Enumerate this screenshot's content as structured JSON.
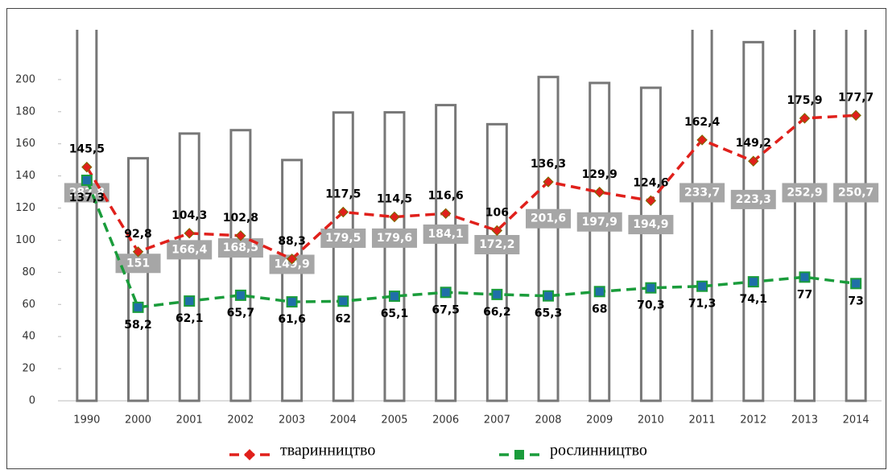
{
  "chart_data": {
    "type": "combo",
    "categories": [
      "1990",
      "2000",
      "2001",
      "2002",
      "2003",
      "2004",
      "2005",
      "2006",
      "2007",
      "2008",
      "2009",
      "2010",
      "2011",
      "2012",
      "2013",
      "2014"
    ],
    "bar_values": [
      282.8,
      151,
      166.4,
      168.5,
      149.9,
      179.5,
      179.6,
      184.1,
      172.2,
      201.6,
      197.9,
      194.9,
      233.7,
      223.3,
      252.9,
      250.7
    ],
    "bar_value_labels": [
      "282,8",
      "151",
      "166,4",
      "168,5",
      "149,9",
      "179,5",
      "179,6",
      "184,1",
      "172,2",
      "201,6",
      "197,9",
      "194,9",
      "233,7",
      "223,3",
      "252,9",
      "250,7"
    ],
    "series": [
      {
        "name": "тваринництво",
        "color": "#e0201b",
        "marker": "diamond",
        "values": [
          145.5,
          92.8,
          104.3,
          102.8,
          88.3,
          117.5,
          114.5,
          116.6,
          106,
          136.3,
          129.9,
          124.6,
          162.4,
          149.2,
          175.9,
          177.7
        ],
        "value_labels": [
          "145,5",
          "92,8",
          "104,3",
          "102,8",
          "88,3",
          "117,5",
          "114,5",
          "116,6",
          "106",
          "136,3",
          "129,9",
          "124,6",
          "162,4",
          "149,2",
          "175,9",
          "177,7"
        ]
      },
      {
        "name": "рослинництво",
        "color": "#1a9c3b",
        "marker": "square",
        "values": [
          137.3,
          58.2,
          62.1,
          65.7,
          61.6,
          62,
          65.1,
          67.5,
          66.2,
          65.3,
          68,
          70.3,
          71.3,
          74.1,
          77,
          73
        ],
        "value_labels": [
          "137,3",
          "58,2",
          "62,1",
          "65,7",
          "61,6",
          "62",
          "65,1",
          "67,5",
          "66,2",
          "65,3",
          "68",
          "70,3",
          "71,3",
          "74,1",
          "77",
          "73"
        ]
      }
    ],
    "ylim": [
      0,
      231
    ],
    "yticks": [
      0,
      20,
      40,
      60,
      80,
      100,
      120,
      140,
      160,
      180,
      200
    ]
  }
}
